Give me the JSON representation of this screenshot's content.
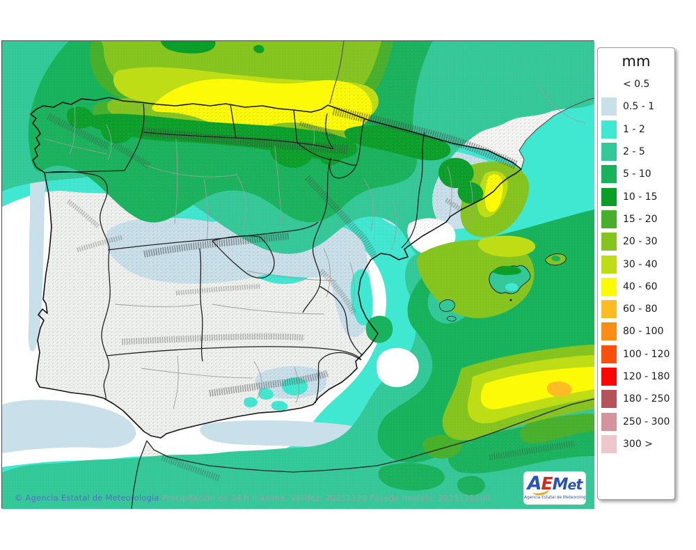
{
  "map": {
    "attribution": "© Agencia Estatal de Meteorología",
    "caption": "Precipitación en 24 h máxima. Validez: 20251120 Pasada modelo: 2025111900",
    "logo": {
      "text": "AEMet",
      "subtext": "Agencia Estatal de Meteorología"
    }
  },
  "legend": {
    "title": "mm",
    "items": [
      {
        "label": "< 0.5",
        "color": null
      },
      {
        "label": "0.5 - 1",
        "color": "#c9dfe9"
      },
      {
        "label": "1 - 2",
        "color": "#3fe8d1"
      },
      {
        "label": "2 - 5",
        "color": "#33c897"
      },
      {
        "label": "5 - 10",
        "color": "#17b25b"
      },
      {
        "label": "10 - 15",
        "color": "#089e27"
      },
      {
        "label": "15 - 20",
        "color": "#46b02b"
      },
      {
        "label": "20 - 30",
        "color": "#85c41f"
      },
      {
        "label": "30 - 40",
        "color": "#bedd14"
      },
      {
        "label": "40 - 60",
        "color": "#fdfa05"
      },
      {
        "label": "60 - 80",
        "color": "#fcbc22"
      },
      {
        "label": "80 - 100",
        "color": "#fc8d14"
      },
      {
        "label": "100 - 120",
        "color": "#fa500d"
      },
      {
        "label": "120 - 180",
        "color": "#fd0505"
      },
      {
        "label": "180 - 250",
        "color": "#b5535d"
      },
      {
        "label": "250 - 300",
        "color": "#d5949d"
      },
      {
        "label": "300 >",
        "color": "#eec7cd"
      }
    ]
  }
}
